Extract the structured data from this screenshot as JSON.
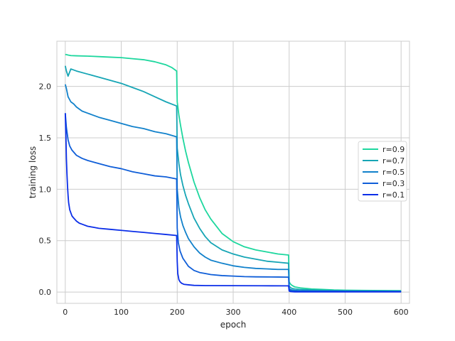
{
  "chart_data": {
    "type": "line",
    "title": "",
    "xlabel": "epoch",
    "ylabel": "training loss",
    "xlim": [
      -15,
      615
    ],
    "ylim": [
      -0.11,
      2.44
    ],
    "xticks": [
      0,
      100,
      200,
      300,
      400,
      500,
      600
    ],
    "xtick_labels": [
      "0",
      "100",
      "200",
      "300",
      "400",
      "500",
      "600"
    ],
    "yticks": [
      0.0,
      0.5,
      1.0,
      1.5,
      2.0
    ],
    "ytick_labels": [
      "0.0",
      "0.5",
      "1.0",
      "1.5",
      "2.0"
    ],
    "grid": true,
    "legend_position": "center-right",
    "background": "#ffffff",
    "grid_color": "#cccccc",
    "series": [
      {
        "name": "r=0.9",
        "color": "#1dd79e",
        "x": [
          0,
          2,
          5,
          10,
          20,
          40,
          60,
          80,
          100,
          120,
          140,
          160,
          170,
          180,
          190,
          199,
          200,
          203,
          206,
          210,
          215,
          220,
          230,
          240,
          250,
          260,
          280,
          300,
          320,
          340,
          360,
          380,
          399,
          400,
          402,
          405,
          410,
          420,
          440,
          460,
          480,
          500,
          550,
          600
        ],
        "y": [
          2.31,
          2.31,
          2.305,
          2.3,
          2.298,
          2.295,
          2.29,
          2.285,
          2.28,
          2.27,
          2.26,
          2.24,
          2.225,
          2.21,
          2.185,
          2.15,
          1.85,
          1.72,
          1.62,
          1.5,
          1.37,
          1.26,
          1.07,
          0.92,
          0.8,
          0.71,
          0.57,
          0.49,
          0.44,
          0.41,
          0.39,
          0.37,
          0.36,
          0.1,
          0.08,
          0.065,
          0.05,
          0.04,
          0.03,
          0.025,
          0.02,
          0.018,
          0.015,
          0.013
        ]
      },
      {
        "name": "r=0.7",
        "color": "#16a5b5",
        "x": [
          0,
          2,
          5,
          10,
          20,
          40,
          60,
          80,
          100,
          120,
          140,
          160,
          180,
          199,
          200,
          203,
          206,
          210,
          215,
          220,
          230,
          240,
          250,
          260,
          280,
          300,
          320,
          340,
          360,
          380,
          399,
          400,
          402,
          405,
          410,
          420,
          440,
          460,
          480,
          500,
          550,
          600
        ],
        "y": [
          2.2,
          2.15,
          2.1,
          2.17,
          2.15,
          2.12,
          2.09,
          2.06,
          2.03,
          1.99,
          1.95,
          1.9,
          1.85,
          1.81,
          1.4,
          1.25,
          1.14,
          1.04,
          0.94,
          0.86,
          0.72,
          0.62,
          0.54,
          0.48,
          0.41,
          0.37,
          0.34,
          0.32,
          0.3,
          0.29,
          0.28,
          0.06,
          0.045,
          0.035,
          0.03,
          0.025,
          0.02,
          0.017,
          0.015,
          0.013,
          0.011,
          0.009
        ]
      },
      {
        "name": "r=0.5",
        "color": "#1181cb",
        "x": [
          0,
          2,
          5,
          10,
          15,
          20,
          30,
          40,
          60,
          80,
          100,
          120,
          140,
          160,
          180,
          199,
          200,
          203,
          206,
          210,
          215,
          220,
          230,
          240,
          250,
          260,
          280,
          300,
          320,
          340,
          360,
          380,
          399,
          400,
          402,
          405,
          410,
          420,
          440,
          460,
          480,
          500,
          550,
          600
        ],
        "y": [
          2.02,
          1.98,
          1.9,
          1.85,
          1.83,
          1.8,
          1.76,
          1.74,
          1.7,
          1.67,
          1.64,
          1.61,
          1.59,
          1.56,
          1.54,
          1.51,
          1.0,
          0.82,
          0.73,
          0.65,
          0.58,
          0.52,
          0.44,
          0.38,
          0.34,
          0.31,
          0.28,
          0.255,
          0.24,
          0.23,
          0.225,
          0.22,
          0.22,
          0.035,
          0.025,
          0.02,
          0.016,
          0.013,
          0.011,
          0.01,
          0.009,
          0.008,
          0.007,
          0.006
        ]
      },
      {
        "name": "r=0.3",
        "color": "#0f5ed8",
        "x": [
          0,
          2,
          5,
          8,
          12,
          20,
          30,
          40,
          60,
          80,
          100,
          120,
          140,
          160,
          180,
          199,
          200,
          202,
          205,
          210,
          215,
          220,
          230,
          240,
          250,
          260,
          280,
          300,
          320,
          340,
          360,
          380,
          399,
          400,
          402,
          405,
          410,
          420,
          440,
          460,
          480,
          500,
          550,
          600
        ],
        "y": [
          1.74,
          1.6,
          1.48,
          1.42,
          1.38,
          1.33,
          1.3,
          1.28,
          1.25,
          1.22,
          1.2,
          1.17,
          1.15,
          1.13,
          1.12,
          1.1,
          0.62,
          0.48,
          0.4,
          0.33,
          0.29,
          0.25,
          0.21,
          0.19,
          0.18,
          0.17,
          0.16,
          0.155,
          0.15,
          0.148,
          0.147,
          0.146,
          0.145,
          0.02,
          0.014,
          0.011,
          0.009,
          0.008,
          0.007,
          0.006,
          0.006,
          0.005,
          0.005,
          0.005
        ]
      },
      {
        "name": "r=0.1",
        "color": "#0b2ee8",
        "x": [
          0,
          1,
          2,
          3,
          4,
          5,
          6,
          8,
          10,
          12,
          15,
          20,
          25,
          30,
          40,
          50,
          60,
          80,
          100,
          120,
          140,
          160,
          180,
          199,
          200,
          201,
          203,
          205,
          208,
          212,
          220,
          230,
          250,
          300,
          350,
          399,
          400,
          402,
          405,
          410,
          450,
          500,
          550,
          600
        ],
        "y": [
          1.74,
          1.55,
          1.3,
          1.15,
          1.03,
          0.94,
          0.87,
          0.8,
          0.77,
          0.74,
          0.72,
          0.69,
          0.67,
          0.66,
          0.64,
          0.63,
          0.62,
          0.61,
          0.6,
          0.59,
          0.58,
          0.57,
          0.56,
          0.55,
          0.3,
          0.18,
          0.12,
          0.1,
          0.085,
          0.075,
          0.07,
          0.065,
          0.063,
          0.062,
          0.061,
          0.06,
          0.01,
          0.005,
          0.003,
          0.002,
          0.002,
          0.002,
          0.002,
          0.002
        ]
      }
    ]
  }
}
